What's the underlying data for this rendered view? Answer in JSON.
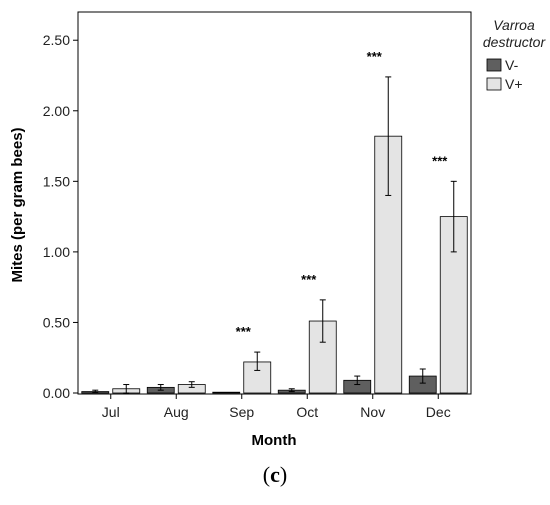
{
  "chart_data": {
    "type": "bar",
    "categories": [
      "Jul",
      "Aug",
      "Sep",
      "Oct",
      "Nov",
      "Dec"
    ],
    "series": [
      {
        "name": "V-",
        "color": "#5f5f5f",
        "values": [
          0.01,
          0.04,
          0.0,
          0.02,
          0.09,
          0.12
        ],
        "err_low": [
          0.005,
          0.02,
          0.0,
          0.01,
          0.06,
          0.07
        ],
        "err_high": [
          0.02,
          0.06,
          0.0,
          0.03,
          0.12,
          0.17
        ]
      },
      {
        "name": "V+",
        "color": "#e4e4e4",
        "values": [
          0.03,
          0.06,
          0.22,
          0.51,
          1.82,
          1.25
        ],
        "err_low": [
          0.0,
          0.04,
          0.16,
          0.36,
          1.4,
          1.0
        ],
        "err_high": [
          0.06,
          0.08,
          0.29,
          0.66,
          2.24,
          1.5
        ]
      }
    ],
    "significance": [
      "",
      "",
      "***",
      "***",
      "***",
      "***"
    ],
    "title": "",
    "xlabel": "Month",
    "ylabel": "Mites (per gram bees)",
    "ylim": [
      0,
      2.7
    ],
    "yticks": [
      "0.00",
      "0.50",
      "1.00",
      "1.50",
      "2.00",
      "2.50"
    ],
    "legend": {
      "title_line1": "Varroa",
      "title_line2": "destructor",
      "placement": "right"
    }
  },
  "caption": {
    "open": "(",
    "letter": "c",
    "close": ")"
  }
}
